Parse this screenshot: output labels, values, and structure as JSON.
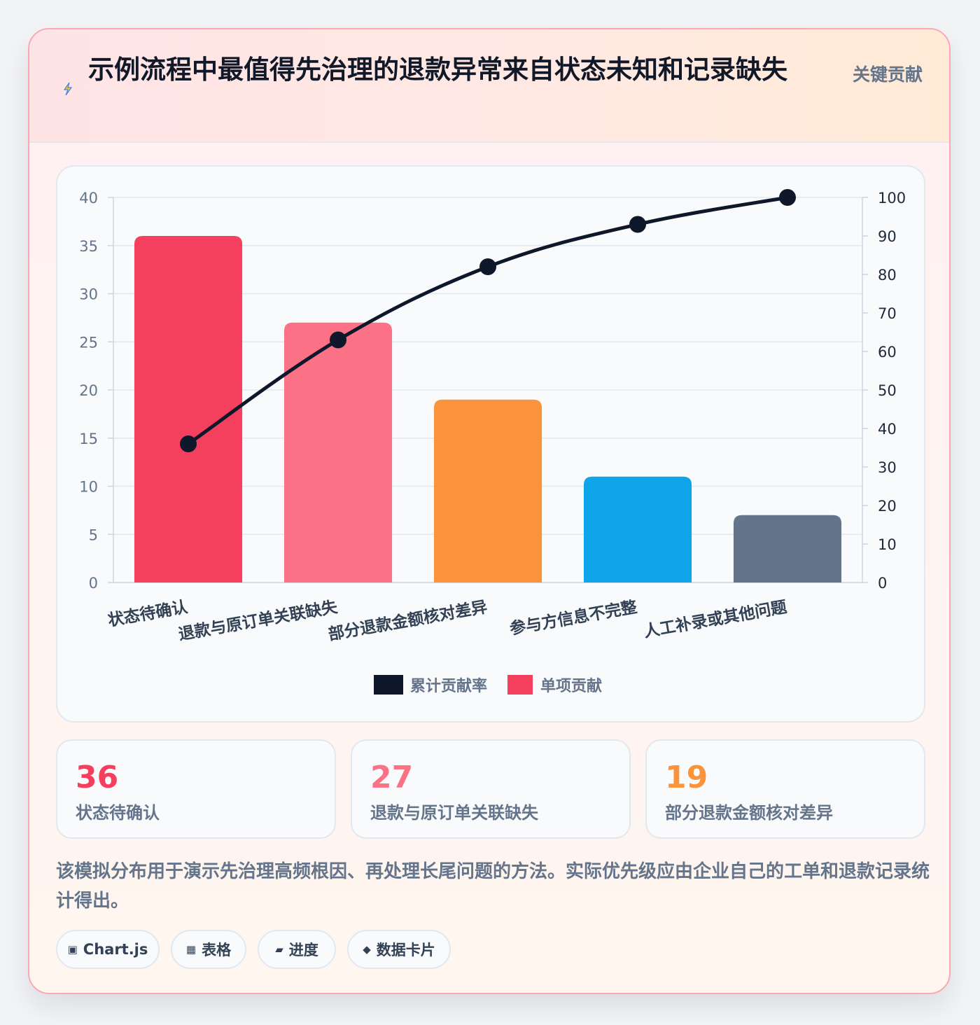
{
  "header": {
    "title": "示例流程中最值得先治理的退款异常来自状态未知和记录缺失",
    "tag": "关键贡献",
    "icon": "lightning-icon"
  },
  "chart_data": {
    "type": "bar",
    "categories": [
      "状态待确认",
      "退款与原订单关联缺失",
      "部分退款金额核对差异",
      "参与方信息不完整",
      "人工补录或其他问题"
    ],
    "series": [
      {
        "name": "单项贡献",
        "type": "bar",
        "axis": "left",
        "values": [
          36,
          27,
          19,
          11,
          7
        ],
        "colors": [
          "#f43f5e",
          "#fb7185",
          "#fb923c",
          "#0ea5e9",
          "#64748b"
        ]
      },
      {
        "name": "累计贡献率",
        "type": "line",
        "axis": "right",
        "values": [
          36,
          63,
          82,
          93,
          100
        ],
        "color": "#0f172a"
      }
    ],
    "y_left": {
      "min": 0,
      "max": 40,
      "ticks": [
        0,
        5,
        10,
        15,
        20,
        25,
        30,
        35,
        40
      ]
    },
    "y_right": {
      "min": 0,
      "max": 100,
      "ticks": [
        0,
        10,
        20,
        30,
        40,
        50,
        60,
        70,
        80,
        90,
        100
      ]
    },
    "legend": {
      "placement": "bottom",
      "entries": [
        "累计贡献率",
        "单项贡献"
      ]
    },
    "grid": true
  },
  "stats": [
    {
      "value": "36",
      "label": "状态待确认",
      "color": "#f43f5e"
    },
    {
      "value": "27",
      "label": "退款与原订单关联缺失",
      "color": "#fb7185"
    },
    {
      "value": "19",
      "label": "部分退款金额核对差异",
      "color": "#fb923c"
    }
  ],
  "note": "该模拟分布用于演示先治理高频根因、再处理长尾问题的方法。实际优先级应由企业自己的工单和退款记录统计得出。",
  "chips": [
    {
      "icon": "▣",
      "label": "Chart.js"
    },
    {
      "icon": "▦",
      "label": "表格"
    },
    {
      "icon": "▰",
      "label": "进度"
    },
    {
      "icon": "◆",
      "label": "数据卡片"
    }
  ]
}
